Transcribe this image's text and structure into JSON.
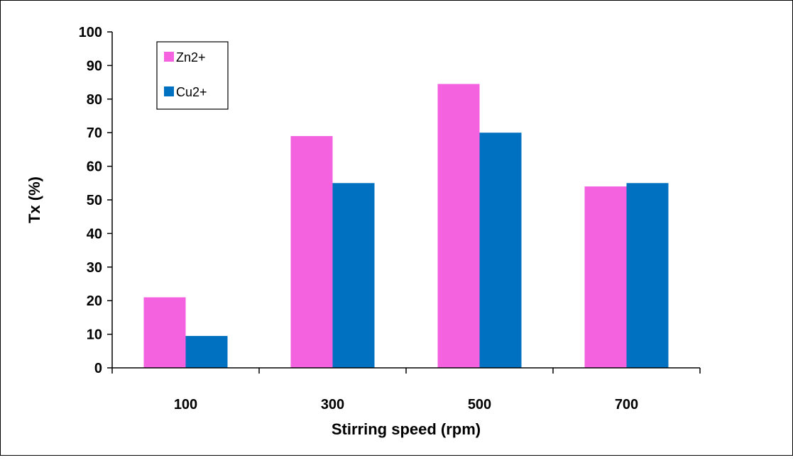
{
  "chart_data": {
    "type": "bar",
    "title": "",
    "xlabel": "Stirring speed (rpm)",
    "ylabel": "Tx (%)",
    "categories": [
      "100",
      "300",
      "500",
      "700"
    ],
    "ylim": [
      0,
      100
    ],
    "yticks": [
      0,
      10,
      20,
      30,
      40,
      50,
      60,
      70,
      80,
      90,
      100
    ],
    "series": [
      {
        "name": "Zn2+",
        "color": "#f462e0",
        "values": [
          21,
          69,
          84.5,
          54
        ]
      },
      {
        "name": "Cu2+",
        "color": "#0070c0",
        "values": [
          9.5,
          55,
          70,
          55
        ]
      }
    ],
    "legend_position": "top-left",
    "grid": false
  }
}
